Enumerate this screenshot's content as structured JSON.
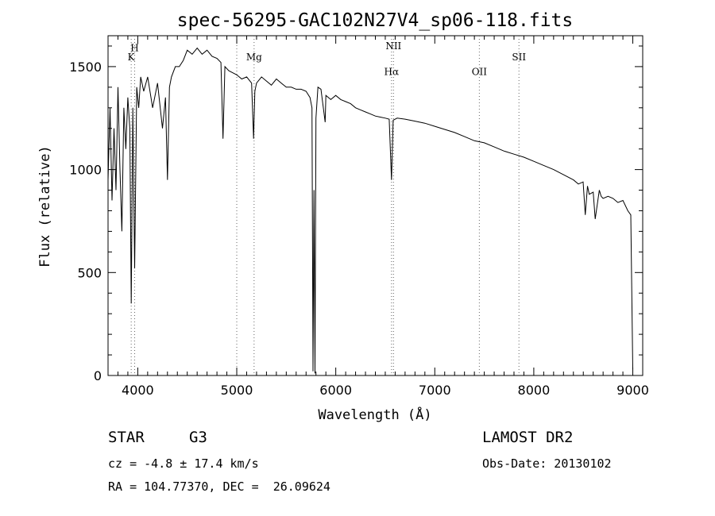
{
  "chart_data": {
    "type": "line",
    "title": "spec-56295-GAC102N27V4_sp06-118.fits",
    "xlabel": "Wavelength (Å)",
    "ylabel": "Flux (relative)",
    "xlim": [
      3700,
      9100
    ],
    "ylim": [
      0,
      1650
    ],
    "x_ticks": [
      4000,
      5000,
      6000,
      7000,
      8000,
      9000
    ],
    "y_ticks": [
      0,
      500,
      1000,
      1500
    ],
    "x_tick_labels": [
      "4000",
      "5000",
      "6000",
      "7000",
      "8000",
      "9000"
    ],
    "y_tick_labels": [
      "0",
      "500",
      "1000",
      "1500"
    ],
    "grid": false,
    "line_color": "#000000",
    "lines": [
      {
        "wavelength": 3934,
        "label": "K",
        "label_y": 1530
      },
      {
        "wavelength": 3969,
        "label": "H",
        "label_y": 1575
      },
      {
        "wavelength": 5000,
        "label": "",
        "label_y": 1480
      },
      {
        "wavelength": 5175,
        "label": "Mg",
        "label_y": 1530
      },
      {
        "wavelength": 6563,
        "label": "Hα",
        "label_y": 1460
      },
      {
        "wavelength": 6583,
        "label": "NII",
        "label_y": 1585
      },
      {
        "wavelength": 7450,
        "label": "OII",
        "label_y": 1460
      },
      {
        "wavelength": 7850,
        "label": "SII",
        "label_y": 1530
      }
    ],
    "series": [
      {
        "x": [
          3700,
          3720,
          3740,
          3760,
          3780,
          3800,
          3820,
          3840,
          3860,
          3880,
          3900,
          3920,
          3934,
          3950,
          3969,
          3990,
          4010,
          4030,
          4060,
          4100,
          4150,
          4200,
          4250,
          4280,
          4300,
          4320,
          4340,
          4380,
          4420,
          4460,
          4500,
          4550,
          4600,
          4650,
          4700,
          4750,
          4800,
          4840,
          4861,
          4880,
          4920,
          4960,
          5000,
          5050,
          5100,
          5150,
          5170,
          5183,
          5200,
          5250,
          5300,
          5350,
          5400,
          5450,
          5500,
          5550,
          5600,
          5650,
          5700,
          5740,
          5760,
          5770,
          5780,
          5790,
          5800,
          5820,
          5850,
          5893,
          5900,
          5950,
          6000,
          6050,
          6100,
          6150,
          6200,
          6250,
          6300,
          6350,
          6400,
          6450,
          6500,
          6540,
          6563,
          6580,
          6620,
          6700,
          6800,
          6900,
          7000,
          7100,
          7200,
          7300,
          7400,
          7500,
          7600,
          7700,
          7800,
          7900,
          8000,
          8100,
          8200,
          8300,
          8400,
          8450,
          8498,
          8520,
          8542,
          8560,
          8600,
          8620,
          8662,
          8680,
          8700,
          8750,
          8800,
          8850,
          8900,
          8950,
          8980,
          9000
        ],
        "y": [
          950,
          1300,
          850,
          1200,
          900,
          1400,
          1000,
          700,
          1300,
          1100,
          1350,
          1200,
          350,
          1300,
          520,
          1400,
          1300,
          1450,
          1380,
          1450,
          1300,
          1420,
          1200,
          1350,
          950,
          1400,
          1450,
          1500,
          1500,
          1530,
          1580,
          1560,
          1590,
          1560,
          1580,
          1550,
          1540,
          1520,
          1150,
          1500,
          1480,
          1470,
          1460,
          1440,
          1450,
          1420,
          1150,
          1380,
          1420,
          1450,
          1430,
          1410,
          1440,
          1420,
          1400,
          1400,
          1390,
          1390,
          1380,
          1350,
          1300,
          20,
          900,
          10,
          1250,
          1400,
          1390,
          1230,
          1360,
          1340,
          1360,
          1340,
          1330,
          1320,
          1300,
          1290,
          1280,
          1270,
          1260,
          1255,
          1250,
          1245,
          950,
          1240,
          1250,
          1245,
          1235,
          1225,
          1210,
          1195,
          1180,
          1160,
          1140,
          1130,
          1110,
          1090,
          1075,
          1060,
          1040,
          1020,
          1000,
          975,
          950,
          930,
          940,
          780,
          920,
          880,
          890,
          760,
          900,
          870,
          860,
          870,
          860,
          840,
          850,
          800,
          780,
          30
        ]
      }
    ]
  },
  "info": {
    "object_class": "STAR",
    "subclass": "G3",
    "survey": "LAMOST DR2",
    "redshift": "cz = -4.8 ± 17.4 km/s",
    "obs_date": "Obs-Date: 20130102",
    "coords": "RA = 104.77370, DEC =  26.09624"
  }
}
